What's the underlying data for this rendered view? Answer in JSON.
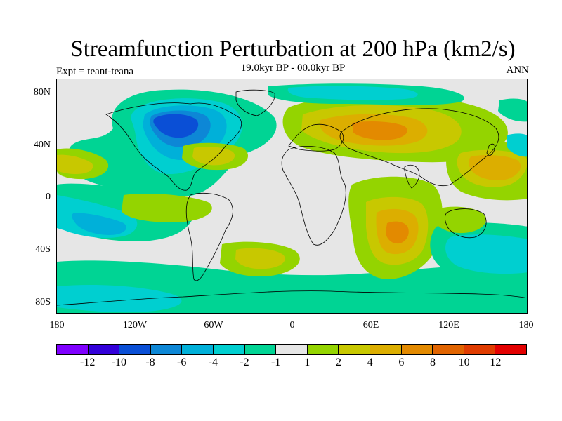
{
  "title": "Streamfunction Perturbation at 200 hPa (km2/s)",
  "subtitle": "19.0kyr BP - 00.0kyr BP",
  "left_label": "Expt = teant-teana",
  "right_label": "ANN",
  "axes": {
    "lat_labels": [
      "80N",
      "40N",
      "0",
      "40S",
      "80S"
    ],
    "lon_labels": [
      "180",
      "120W",
      "60W",
      "0",
      "60E",
      "120E",
      "180"
    ]
  },
  "colorbar": {
    "colors": [
      "#7f00ff",
      "#3300d9",
      "#0a4fd6",
      "#0d87d6",
      "#00b0d9",
      "#00cfd0",
      "#00d494",
      "#e6e6e6",
      "#94d400",
      "#c8c800",
      "#dcae00",
      "#e38a00",
      "#e16400",
      "#e03c00",
      "#e30000"
    ],
    "labels": [
      "-12",
      "-10",
      "-8",
      "-6",
      "-4",
      "-2",
      "-1",
      "1",
      "2",
      "4",
      "6",
      "8",
      "10",
      "12"
    ]
  },
  "palette": {
    "neg1": "#00d494",
    "neg2": "#00cfd0",
    "neg4": "#00b0d9",
    "neg6": "#0d87d6",
    "neg8": "#0a4fd6",
    "pos1": "#94d400",
    "pos2": "#c8c800",
    "pos4": "#dcae00",
    "pos6": "#e38a00",
    "neutral": "#e6e6e6"
  }
}
